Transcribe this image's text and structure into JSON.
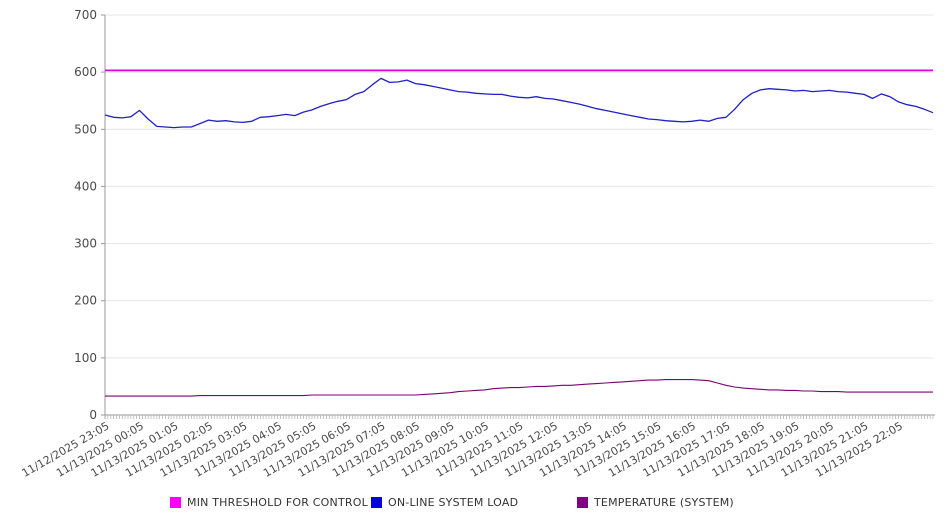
{
  "chart_data": {
    "type": "line",
    "title": "",
    "xlabel": "",
    "ylabel": "",
    "grid": "horizontal",
    "legend_position": "bottom",
    "x_axis": {
      "start_label": "11/12/2025 23:05",
      "end_label": "11/13/2025 22:05",
      "label_interval_minutes": 60,
      "minor_tick_minutes": 5,
      "end_minute": 1440,
      "labels": [
        "11/12/2025 23:05",
        "11/13/2025 00:05",
        "11/13/2025 01:05",
        "11/13/2025 02:05",
        "11/13/2025 03:05",
        "11/13/2025 04:05",
        "11/13/2025 05:05",
        "11/13/2025 06:05",
        "11/13/2025 07:05",
        "11/13/2025 08:05",
        "11/13/2025 09:05",
        "11/13/2025 10:05",
        "11/13/2025 11:05",
        "11/13/2025 12:05",
        "11/13/2025 13:05",
        "11/13/2025 14:05",
        "11/13/2025 15:05",
        "11/13/2025 16:05",
        "11/13/2025 17:05",
        "11/13/2025 18:05",
        "11/13/2025 19:05",
        "11/13/2025 20:05",
        "11/13/2025 21:05",
        "11/13/2025 22:05"
      ]
    },
    "y_axis": {
      "min": 0,
      "max": 700,
      "tick_step": 100,
      "ticks": [
        0,
        100,
        200,
        300,
        400,
        500,
        600,
        700
      ]
    },
    "series": [
      {
        "name": "MIN THRESHOLD FOR CONTROL",
        "type": "constant",
        "value": 603,
        "color": "#e800e0",
        "legend_color": "#ff00ff"
      },
      {
        "name": "ON-LINE SYSTEM LOAD",
        "type": "line",
        "sample_minutes": 15,
        "color": "#2020c8",
        "legend_color": "#0000dd",
        "values": [
          525,
          521,
          520,
          522,
          533,
          518,
          505,
          504,
          503,
          504,
          504,
          510,
          516,
          514,
          515,
          513,
          512,
          514,
          521,
          522,
          524,
          526,
          524,
          530,
          534,
          540,
          545,
          549,
          552,
          561,
          566,
          578,
          589,
          582,
          583,
          586,
          580,
          578,
          575,
          572,
          569,
          566,
          565,
          563,
          562,
          561,
          561,
          558,
          556,
          555,
          557,
          554,
          553,
          550,
          547,
          544,
          540,
          536,
          533,
          530,
          527,
          524,
          521,
          518,
          517,
          515,
          514,
          513,
          514,
          516,
          514,
          519,
          521,
          535,
          552,
          563,
          569,
          571,
          570,
          569,
          567,
          568,
          566,
          567,
          568,
          566,
          565,
          563,
          561,
          554,
          562,
          557,
          548,
          543,
          540,
          535,
          529
        ]
      },
      {
        "name": "TEMPERATURE (SYSTEM)",
        "type": "line",
        "sample_minutes": 15,
        "color": "#7d0073",
        "legend_color": "#800080",
        "values": [
          33,
          33,
          33,
          33,
          33,
          33,
          33,
          33,
          33,
          33,
          33,
          34,
          34,
          34,
          34,
          34,
          34,
          34,
          34,
          34,
          34,
          34,
          34,
          34,
          35,
          35,
          35,
          35,
          35,
          35,
          35,
          35,
          35,
          35,
          35,
          35,
          35,
          36,
          37,
          38,
          39,
          41,
          42,
          43,
          44,
          46,
          47,
          48,
          48,
          49,
          50,
          50,
          51,
          52,
          52,
          53,
          54,
          55,
          56,
          57,
          58,
          59,
          60,
          61,
          61,
          62,
          62,
          62,
          62,
          61,
          60,
          56,
          52,
          49,
          47,
          46,
          45,
          44,
          44,
          43,
          43,
          42,
          42,
          41,
          41,
          41,
          40,
          40,
          40,
          40,
          40,
          40,
          40,
          40,
          40,
          40,
          40
        ]
      }
    ]
  },
  "legend": {
    "items": [
      {
        "label": "MIN THRESHOLD FOR CONTROL"
      },
      {
        "label": "ON-LINE SYSTEM LOAD"
      },
      {
        "label": "TEMPERATURE (SYSTEM)"
      }
    ]
  }
}
